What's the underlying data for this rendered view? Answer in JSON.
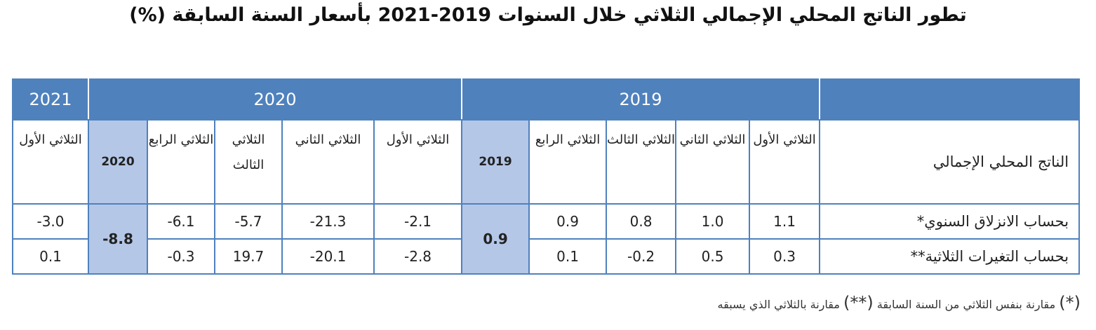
{
  "title": "تطور الناتج المحلي الإجمالي الثلاثي خلال السنوات 2019-2021 بأسعار السنة السابقة (%)",
  "years": {
    "y2021": "2021",
    "y2020": "2020",
    "y2019": "2019"
  },
  "row_header": "الناتج المحلي الإجمالي",
  "quarters": {
    "q1": "الثلاثي الأول",
    "q2": "الثلاثي الثاني",
    "q3": "الثلاثي الثالث",
    "q4": "الثلاثي الرابع"
  },
  "annual_2020_label": "2020",
  "annual_2019_label": "2019",
  "rows": [
    {
      "label": "بحساب الانزلاق السنوي*",
      "y2021_q1": "-3.0",
      "y2020_annual": "-8.8",
      "y2020": [
        "-2.1",
        "-21.3",
        "-5.7",
        "-6.1"
      ],
      "y2019_annual": "0.9",
      "y2019": [
        "1.1",
        "1.0",
        "0.8",
        "0.9"
      ]
    },
    {
      "label": "بحساب التغيرات الثلاثية**",
      "y2021_q1": "0.1",
      "y2020": [
        "-2.8",
        "-20.1",
        "19.7",
        "-0.3"
      ],
      "y2019": [
        "0.3",
        "0.5",
        "-0.2",
        "0.1"
      ]
    }
  ],
  "footnote": {
    "star1": "(*)",
    "text1": "مقارنة بنفس الثلاثي من السنة السابقة",
    "star2": "(**)",
    "text2": "مقارنة بالثلاثي الذي يسبقه"
  }
}
